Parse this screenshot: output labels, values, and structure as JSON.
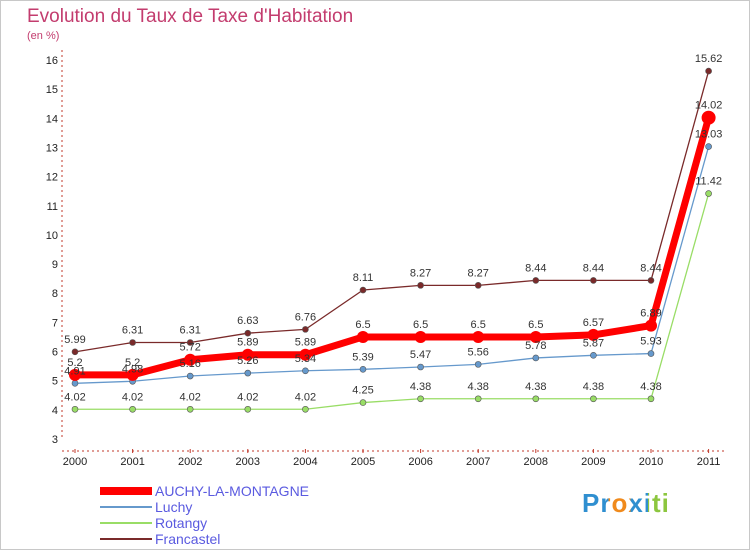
{
  "header": {
    "title": "Evolution du Taux de Taxe d'Habitation",
    "subtitle": "(en %)"
  },
  "logo": {
    "text": "Proxiti"
  },
  "chart_data": {
    "type": "line",
    "title": "Evolution du Taux de Taxe d'Habitation",
    "subtitle": "(en %)",
    "x": [
      "2000",
      "2001",
      "2002",
      "2003",
      "2004",
      "2005",
      "2006",
      "2007",
      "2008",
      "2009",
      "2010",
      "2011"
    ],
    "ylim": [
      3,
      16
    ],
    "yticks": [
      "3",
      "4",
      "5",
      "6",
      "7",
      "8",
      "9",
      "10",
      "11",
      "12",
      "13",
      "14",
      "15",
      "16"
    ],
    "grid": false,
    "legend_position": "bottom-left",
    "series": [
      {
        "name": "AUCHY-LA-MONTAGNE",
        "color": "#ff0000",
        "values": [
          5.2,
          5.2,
          5.72,
          5.89,
          5.89,
          6.5,
          6.5,
          6.5,
          6.5,
          6.57,
          6.89,
          14.02
        ],
        "labels": [
          "5.2",
          "5.2",
          "5.72",
          "5.89",
          "5.89",
          "6.5",
          "6.5",
          "6.5",
          "6.5",
          "6.57",
          "6.89",
          "14.02"
        ]
      },
      {
        "name": "Luchy",
        "color": "#6699cc",
        "values": [
          4.91,
          4.98,
          5.16,
          5.26,
          5.34,
          5.39,
          5.47,
          5.56,
          5.78,
          5.87,
          5.93,
          13.03
        ],
        "labels": [
          "4.91",
          "4.98",
          "5.16",
          "5.26",
          "5.34",
          "5.39",
          "5.47",
          "5.56",
          "5.78",
          "5.87",
          "5.93",
          "13.03"
        ]
      },
      {
        "name": "Rotangy",
        "color": "#99dd66",
        "values": [
          4.02,
          4.02,
          4.02,
          4.02,
          4.02,
          4.25,
          4.38,
          4.38,
          4.38,
          4.38,
          4.38,
          11.42
        ],
        "labels": [
          "4.02",
          "4.02",
          "4.02",
          "4.02",
          "4.02",
          "4.25",
          "4.38",
          "4.38",
          "4.38",
          "4.38",
          "4.38",
          "11.42"
        ]
      },
      {
        "name": "Francastel",
        "color": "#7a2a2a",
        "values": [
          5.99,
          6.31,
          6.31,
          6.63,
          6.76,
          8.11,
          8.27,
          8.27,
          8.44,
          8.44,
          8.44,
          15.62
        ],
        "labels": [
          "5.99",
          "6.31",
          "6.31",
          "6.63",
          "6.76",
          "8.11",
          "8.27",
          "8.27",
          "8.44",
          "8.44",
          "8.44",
          "15.62"
        ]
      }
    ]
  }
}
